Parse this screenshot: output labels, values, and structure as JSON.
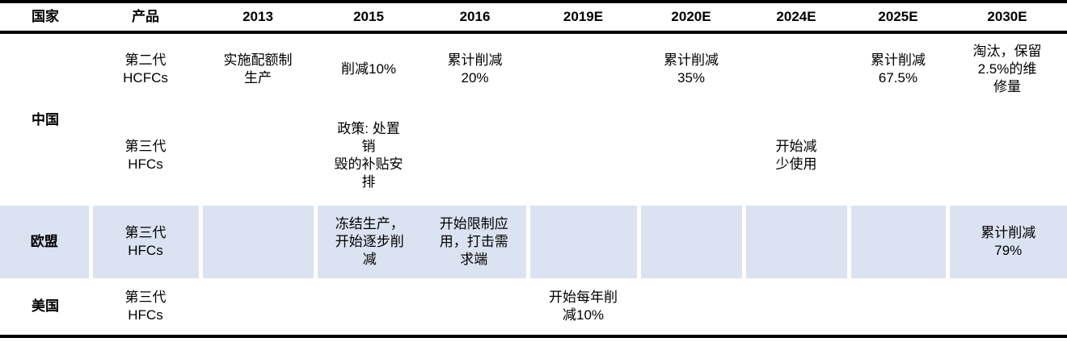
{
  "colors": {
    "highlight_row_bg": "#dbe2f1",
    "border": "#000000",
    "text": "#000000"
  },
  "table": {
    "headers": [
      "国家",
      "产品",
      "2013",
      "2015",
      "2016",
      "2019E",
      "2020E",
      "2024E",
      "2025E",
      "2030E"
    ],
    "rows": [
      {
        "country": "中国",
        "product": "第二代\nHCFCs",
        "y2013": "实施配额制\n生产",
        "y2015": "削减10%",
        "y2016": "累计削减\n20%",
        "y2019e": "",
        "y2020e": "累计削减\n35%",
        "y2024e": "",
        "y2025e": "累计削减\n67.5%",
        "y2030e": "淘汰，保留\n2.5%的维\n修量"
      },
      {
        "country": "",
        "product": "第三代\nHFCs",
        "y2013": "",
        "y2015": "政策: 处置\n销\n毁的补贴安\n排",
        "y2016": "",
        "y2019e": "",
        "y2020e": "",
        "y2024e": "开始减\n少使用",
        "y2025e": "",
        "y2030e": ""
      },
      {
        "country": "欧盟",
        "product": "第三代\nHFCs",
        "y2013": "",
        "y2015": "冻结生产，\n开始逐步削\n减",
        "y2016": "开始限制应\n用，打击需\n求端",
        "y2019e": "",
        "y2020e": "",
        "y2024e": "",
        "y2025e": "",
        "y2030e": "累计削减\n79%"
      },
      {
        "country": "美国",
        "product": "第三代\nHFCs",
        "y2013": "",
        "y2015": "",
        "y2016": "",
        "y2019e": "开始每年削\n减10%",
        "y2020e": "",
        "y2024e": "",
        "y2025e": "",
        "y2030e": ""
      }
    ]
  }
}
